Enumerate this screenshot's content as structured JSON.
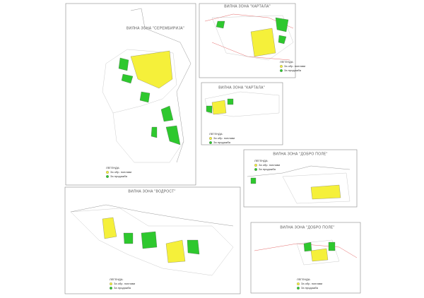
{
  "panels": [
    {
      "title": "ВИЛНА ЗОНА \"СЕРЕМБИРИЈА\"",
      "legend": {
        "heading": "ЛЕГЕНДА:",
        "items": [
          "За обр. поплави",
          "За продажба"
        ]
      }
    },
    {
      "title": "ВИЛНА ЗОНА \"КАРТАЛА\"",
      "legend": {
        "heading": "ЛЕГЕНДА:",
        "items": [
          "За обр. поплави",
          "За продажба"
        ]
      }
    },
    {
      "title": "ВИЛНА ЗОНА \"КАРТАЛА\"",
      "legend": {
        "heading": "ЛЕГЕНДА:",
        "items": [
          "За обр. поплави",
          "За продажба"
        ]
      }
    },
    {
      "title": "ВИЛНА ЗОНА \"ДОБРО ПОЛЕ\"",
      "legend": {
        "heading": "ЛЕГЕНДА:",
        "items": [
          "За обр. поплави",
          "За продажба"
        ]
      }
    },
    {
      "title": "ВИЛНА ЗОНА \"ВОДРОСТ\"",
      "legend": {
        "heading": "ЛЕГЕНДА:",
        "items": [
          "За обр. поплави",
          "За продажба"
        ]
      }
    },
    {
      "title": "ВИЛНА ЗОНА \"ДОБРО ПОЛЕ\"",
      "legend": {
        "heading": "ЛЕГЕНДА:",
        "items": [
          "За обр. поплави",
          "За продажба"
        ]
      }
    }
  ]
}
